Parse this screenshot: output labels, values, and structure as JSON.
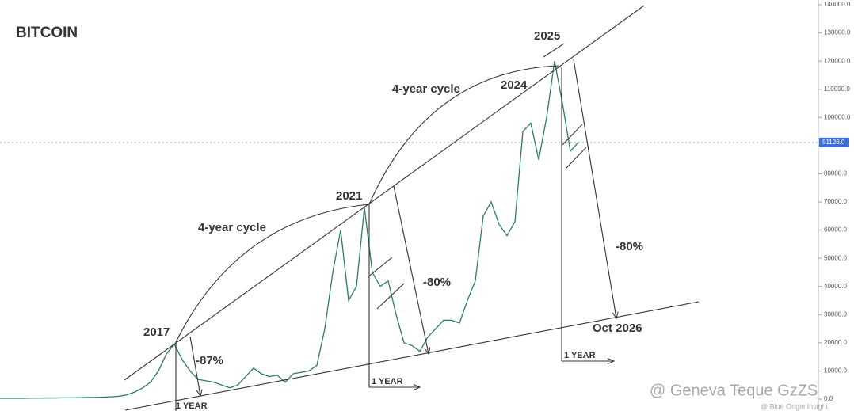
{
  "chart_data": {
    "type": "line",
    "categories": [
      null,
      null,
      null,
      null,
      null,
      null,
      null,
      null,
      null,
      null,
      null,
      null,
      null,
      null,
      null,
      null,
      null,
      null,
      null,
      null,
      null,
      null,
      null,
      null,
      null,
      null,
      null,
      null,
      null,
      null,
      null,
      null,
      null,
      null,
      null,
      null,
      null,
      null,
      null,
      null,
      null,
      null,
      null,
      null,
      null,
      null,
      null,
      null,
      null,
      null,
      null,
      null,
      null,
      null,
      null,
      null,
      null,
      null,
      null,
      null,
      null,
      null,
      null,
      null,
      null,
      null,
      null,
      null,
      null,
      null,
      null,
      null,
      null,
      null
    ],
    "series": [
      {
        "color": "#2e7d5b",
        "values": [
          300,
          300,
          300,
          300,
          350,
          350,
          400,
          400,
          450,
          450,
          500,
          600,
          600,
          700,
          800,
          1000,
          1500,
          2500,
          4000,
          6000,
          10000,
          16000,
          19500,
          14000,
          10000,
          7000,
          6500,
          6000,
          5000,
          4000,
          5000,
          8000,
          11000,
          9000,
          8000,
          8500,
          6000,
          9000,
          9500,
          10000,
          12000,
          25000,
          45000,
          60000,
          35000,
          40000,
          68000,
          45000,
          40000,
          42000,
          30000,
          20000,
          19000,
          17000,
          22000,
          25000,
          28000,
          28000,
          27000,
          35000,
          42000,
          65000,
          70000,
          62000,
          58000,
          63000,
          95000,
          98000,
          85000,
          100000,
          120000,
          105000,
          88000,
          91126
        ]
      }
    ],
    "ylim": [
      0,
      140000
    ],
    "yticks": [
      {
        "value": 0,
        "label": "0.0"
      },
      {
        "value": 10000,
        "label": "10000.0"
      },
      {
        "value": 20000,
        "label": "20000.0"
      },
      {
        "value": 30000,
        "label": "30000.0"
      },
      {
        "value": 40000,
        "label": "40000.0"
      },
      {
        "value": 50000,
        "label": "50000.0"
      },
      {
        "value": 60000,
        "label": "60000.0"
      },
      {
        "value": 70000,
        "label": "70000.0"
      },
      {
        "value": 80000,
        "label": "80000.0"
      },
      {
        "value": 90000,
        "label": "90000.0"
      },
      {
        "value": 100000,
        "label": "100000.0"
      },
      {
        "value": 110000,
        "label": "110000.0"
      },
      {
        "value": 120000,
        "label": "120000.0"
      },
      {
        "value": 130000,
        "label": "130000.0"
      },
      {
        "value": 140000,
        "label": "140000.0"
      }
    ],
    "current_price": {
      "value": 91126,
      "label": "91126.0",
      "color": "#3d6fd8"
    },
    "annotations": [
      "BITCOIN",
      "4-year cycle",
      "4-year cycle",
      "2017",
      "2021",
      "2024",
      "2025",
      "-87%",
      "-80%",
      "-80%",
      "Oct 2026",
      "1 YEAR",
      "1 YEAR",
      "1 YEAR",
      "@ Geneva Teque GzZS",
      "@ Blue Origin Insight"
    ]
  }
}
